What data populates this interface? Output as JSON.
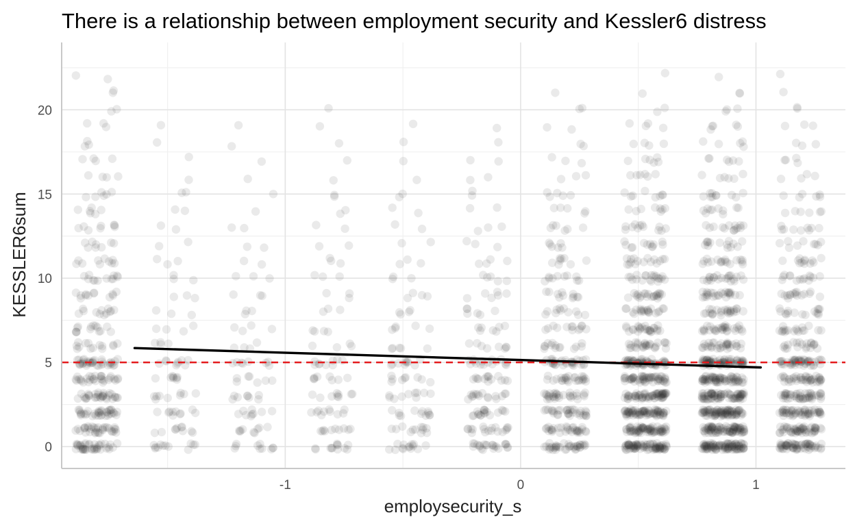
{
  "chart_data": {
    "type": "scatter",
    "title": "There is a relationship between employment security and Kessler6 distress",
    "xlabel": "employsecurity_s",
    "ylabel": "KESSLER6sum",
    "xlim": [
      -1.95,
      1.38
    ],
    "ylim": [
      -1.3,
      24.0
    ],
    "x_ticks": [
      -1,
      0,
      1
    ],
    "x_tick_labels": [
      "-1",
      "0",
      "1"
    ],
    "y_ticks": [
      0,
      5,
      10,
      15,
      20
    ],
    "y_tick_labels": [
      "0",
      "5",
      "10",
      "15",
      "20"
    ],
    "grid": true,
    "legend": "none",
    "point_color": "#333333",
    "point_alpha": 0.1,
    "jitter": {
      "x": 0.09,
      "y": 0.2
    },
    "reference_line": {
      "y": 5,
      "color": "#e41a1c",
      "style": "dashed"
    },
    "fit_line": {
      "x": [
        -1.64,
        1.02
      ],
      "y": [
        5.85,
        4.7
      ],
      "color": "#000000"
    },
    "x_levels": [
      -1.8,
      -1.47,
      -1.14,
      -0.8,
      -0.47,
      -0.14,
      0.19,
      0.53,
      0.86,
      1.19
    ],
    "counts_by_level": [
      [
        40,
        34,
        36,
        32,
        30,
        36,
        14,
        14,
        12,
        12,
        12,
        10,
        8,
        8,
        6,
        6,
        4,
        4,
        3,
        3,
        2,
        2,
        2
      ],
      [
        12,
        10,
        10,
        9,
        8,
        9,
        4,
        4,
        3,
        3,
        3,
        3,
        2,
        2,
        2,
        2,
        1,
        1,
        1,
        1,
        0,
        0,
        0
      ],
      [
        10,
        9,
        9,
        8,
        7,
        8,
        4,
        4,
        3,
        3,
        3,
        2,
        2,
        2,
        1,
        1,
        1,
        1,
        1,
        1,
        0,
        0,
        0
      ],
      [
        12,
        10,
        10,
        9,
        8,
        9,
        4,
        4,
        3,
        3,
        3,
        3,
        2,
        2,
        2,
        2,
        1,
        1,
        1,
        1,
        1,
        0,
        0
      ],
      [
        14,
        12,
        12,
        10,
        9,
        10,
        5,
        5,
        4,
        4,
        3,
        3,
        2,
        2,
        2,
        2,
        1,
        1,
        1,
        1,
        0,
        0,
        0
      ],
      [
        22,
        18,
        18,
        16,
        14,
        16,
        8,
        7,
        6,
        6,
        5,
        4,
        3,
        3,
        2,
        2,
        2,
        2,
        1,
        1,
        0,
        0,
        0
      ],
      [
        38,
        32,
        32,
        30,
        26,
        32,
        14,
        13,
        11,
        11,
        10,
        8,
        6,
        6,
        5,
        5,
        3,
        3,
        2,
        2,
        2,
        1,
        0
      ],
      [
        84,
        72,
        74,
        66,
        58,
        66,
        28,
        26,
        22,
        22,
        20,
        16,
        12,
        12,
        8,
        8,
        6,
        6,
        4,
        4,
        2,
        1,
        1
      ],
      [
        100,
        86,
        88,
        78,
        68,
        78,
        32,
        30,
        26,
        26,
        22,
        18,
        14,
        14,
        10,
        10,
        6,
        6,
        5,
        5,
        3,
        2,
        1
      ],
      [
        62,
        54,
        54,
        48,
        42,
        48,
        20,
        18,
        16,
        16,
        14,
        12,
        9,
        9,
        6,
        6,
        4,
        4,
        3,
        3,
        2,
        1,
        1
      ]
    ]
  }
}
